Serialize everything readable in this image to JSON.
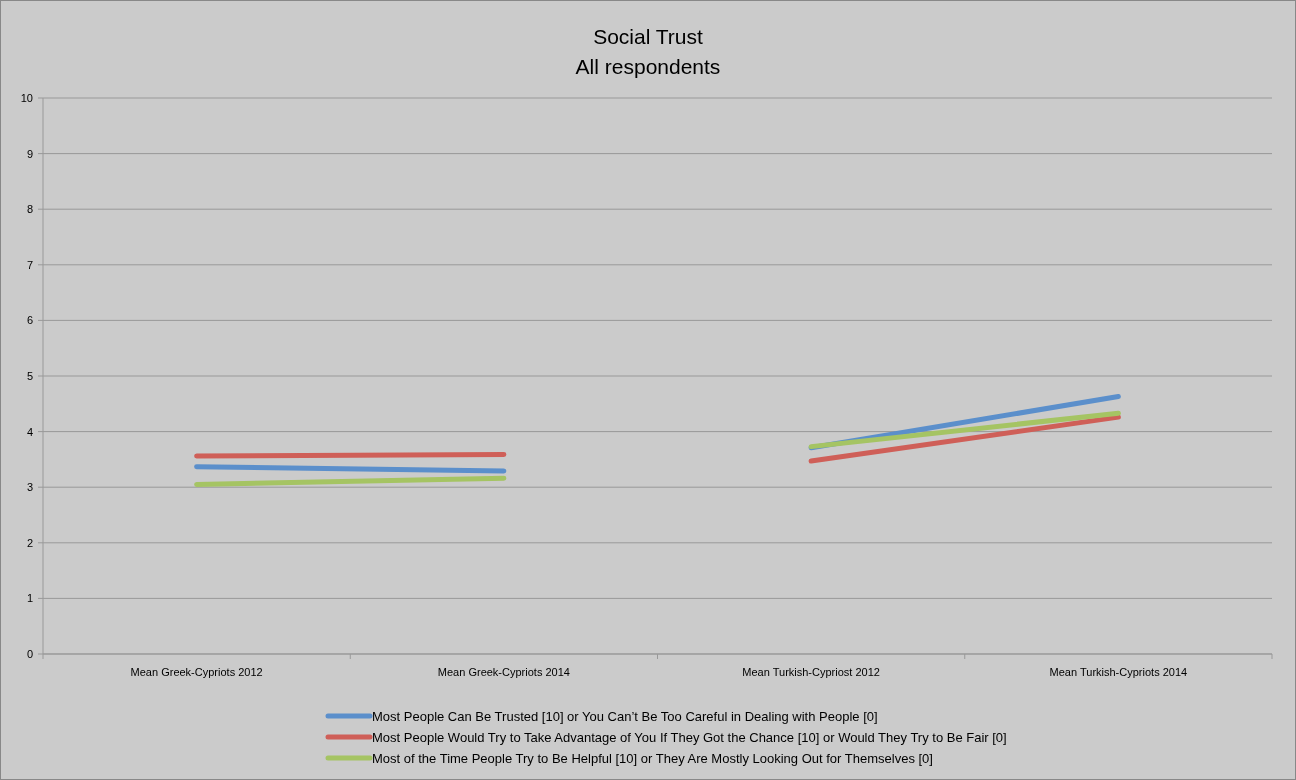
{
  "chart_data": {
    "type": "line",
    "title": "Social Trust",
    "subtitle": "All respondents",
    "categories": [
      "Mean Greek-Cypriots 2012",
      "Mean Greek-Cypriots 2014",
      "Mean Turkish-Cypriost 2012",
      "Mean Turkish-Cypriots 2014"
    ],
    "series": [
      {
        "name": "Most People Can Be Trusted [10] or You Can’t Be Too Careful in Dealing with People [0]",
        "color": "#5b8fcb",
        "values": [
          3.37,
          3.29,
          null,
          null
        ]
      },
      {
        "name": "Most People Would Try to Take Advantage of You If They Got the Chance [10] or Would They Try to Be Fair [0]",
        "color": "#cf5f58",
        "values": [
          3.56,
          3.59,
          null,
          null
        ]
      },
      {
        "name": "Most of the Time People Try to Be Helpful [10] or They Are Mostly Looking Out for Themselves [0]",
        "color": "#a5c463",
        "values": [
          3.05,
          3.16,
          null,
          null
        ]
      },
      {
        "color": "#5b8fcb",
        "values": [
          null,
          null,
          3.71,
          4.63
        ]
      },
      {
        "color": "#cf5f58",
        "values": [
          null,
          null,
          3.47,
          4.26
        ]
      },
      {
        "color": "#a5c463",
        "values": [
          null,
          null,
          3.73,
          4.33
        ]
      }
    ],
    "ylim": [
      0,
      10
    ],
    "yticks": [
      0,
      1,
      2,
      3,
      4,
      5,
      6,
      7,
      8,
      9,
      10
    ],
    "grid": "y",
    "legend": "bottom",
    "marker": "none",
    "line_style": "solid"
  }
}
